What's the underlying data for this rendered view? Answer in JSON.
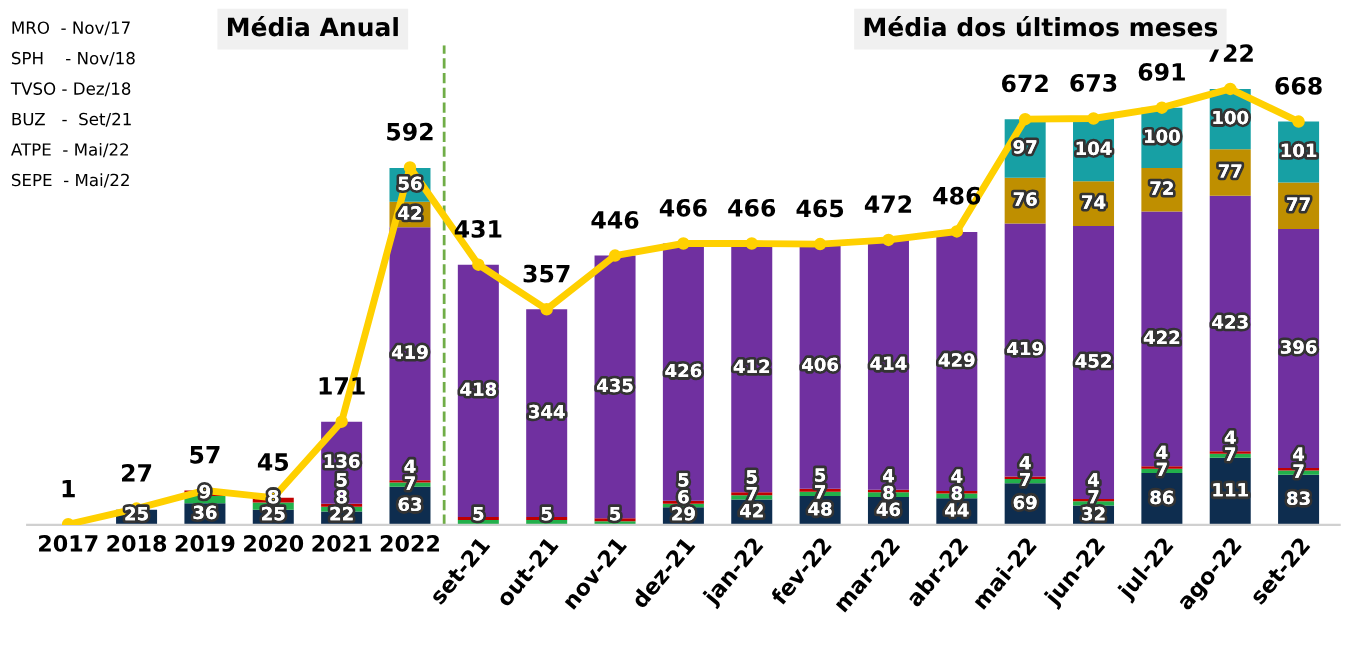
{
  "chart_data": {
    "type": "bar",
    "stacked": true,
    "categories": [
      "2017",
      "2018",
      "2019",
      "2020",
      "2021",
      "2022",
      "set-21",
      "out-21",
      "nov-21",
      "dez-21",
      "jan-22",
      "fev-22",
      "mar-22",
      "abr-22",
      "mai-22",
      "jun-22",
      "jul-22",
      "ago-22",
      "set-22"
    ],
    "series": [
      {
        "color": "#0e2d4f",
        "values": [
          null,
          25,
          36,
          25,
          22,
          63,
          0,
          0,
          0,
          29,
          42,
          48,
          46,
          44,
          69,
          32,
          86,
          111,
          83
        ],
        "value_labels": [
          null,
          "25",
          "36",
          "25",
          "22",
          "63",
          null,
          null,
          null,
          "29",
          "42",
          "48",
          "46",
          "44",
          "69",
          "32",
          "86",
          "111",
          "83"
        ]
      },
      {
        "color": "#22b04b",
        "values": [
          0,
          null,
          12,
          12,
          8,
          7,
          8,
          8,
          6,
          6,
          7,
          7,
          8,
          8,
          7,
          7,
          7,
          7,
          7
        ],
        "value_labels": [
          null,
          null,
          null,
          null,
          "8",
          "7",
          null,
          null,
          null,
          "6",
          "7",
          "7",
          "8",
          "8",
          "7",
          "7",
          "7",
          "7",
          "7"
        ]
      },
      {
        "color": "#c00000",
        "values": [
          0,
          0,
          9,
          8,
          5,
          4,
          5,
          5,
          5,
          5,
          5,
          5,
          4,
          4,
          4,
          4,
          4,
          4,
          4
        ],
        "value_labels": [
          null,
          null,
          "9",
          "8",
          "5",
          "4",
          "5",
          "5",
          "5",
          "5",
          "5",
          "5",
          "4",
          "4",
          "4",
          "4",
          "4",
          "4",
          "4"
        ]
      },
      {
        "color": "#7030a0",
        "values": [
          0,
          0,
          0,
          0,
          136,
          419,
          418,
          344,
          435,
          426,
          412,
          406,
          414,
          429,
          419,
          452,
          422,
          423,
          396
        ],
        "value_labels": [
          null,
          null,
          null,
          null,
          "136",
          "419",
          "418",
          "344",
          "435",
          "426",
          "412",
          "406",
          "414",
          "429",
          "419",
          "452",
          "422",
          "423",
          "396"
        ]
      },
      {
        "color": "#bf8f00",
        "values": [
          0,
          0,
          0,
          0,
          0,
          42,
          0,
          0,
          0,
          0,
          0,
          0,
          0,
          0,
          76,
          74,
          72,
          77,
          77
        ],
        "value_labels": [
          null,
          null,
          null,
          null,
          null,
          "42",
          null,
          null,
          null,
          null,
          null,
          null,
          null,
          null,
          "76",
          "74",
          "72",
          "77",
          "77"
        ]
      },
      {
        "color": "#17a0a4",
        "values": [
          0,
          0,
          0,
          0,
          0,
          56,
          0,
          0,
          0,
          0,
          0,
          0,
          0,
          0,
          97,
          104,
          100,
          100,
          101
        ],
        "value_labels": [
          null,
          null,
          null,
          null,
          null,
          "56",
          null,
          null,
          null,
          null,
          null,
          null,
          null,
          null,
          "97",
          "104",
          "100",
          "100",
          "101"
        ]
      },
      {
        "type": "line",
        "color": "#ffd000",
        "marker": "circle",
        "values": [
          1,
          27,
          57,
          45,
          171,
          592,
          431,
          357,
          446,
          466,
          466,
          465,
          472,
          486,
          672,
          673,
          691,
          722,
          668
        ],
        "value_labels": [
          "1",
          "27",
          "57",
          "45",
          "171",
          "592",
          "431",
          "357",
          "446",
          "466",
          "466",
          "465",
          "472",
          "486",
          "672",
          "673",
          "691",
          "722",
          "668"
        ]
      }
    ],
    "ref_lines": [
      {
        "axis": "x",
        "value": "2022",
        "color": "#70ad47",
        "line_style": "dashed"
      }
    ],
    "annotations": [
      "Média Anual",
      "Média dos últimos meses",
      "MRO  - Nov/17",
      "SPH    - Nov/18",
      "TVSO - Dez/18",
      "BUZ   -  Set/21",
      "ATPE  - Mai/22",
      "SEPE  - Mai/22"
    ],
    "grid": false,
    "legend": false,
    "tick_labels": "x"
  }
}
